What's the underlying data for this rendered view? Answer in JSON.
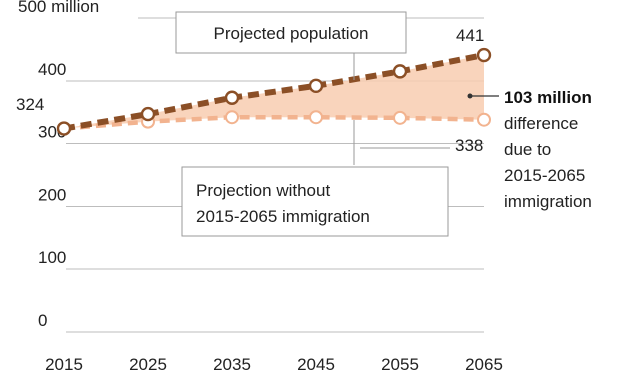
{
  "chart_data": {
    "type": "line",
    "x": [
      2015,
      2025,
      2035,
      2045,
      2055,
      2065
    ],
    "x_tick_labels": [
      "2015",
      "2025",
      "2035",
      "2045",
      "2055",
      "2065"
    ],
    "y_tick_labels": [
      "0",
      "100",
      "200",
      "300",
      "400",
      "500 million"
    ],
    "ylim": [
      0,
      500
    ],
    "grid": true,
    "series": [
      {
        "key": "projected",
        "values": [
          324,
          347,
          373,
          392,
          415,
          441
        ],
        "color": "#8b4f26",
        "style": "dashed-bold",
        "marker": "open-circle"
      },
      {
        "key": "without_immigration",
        "values": [
          324,
          335,
          342,
          342,
          341,
          338
        ],
        "color": "#f2b38f",
        "style": "dashed",
        "marker": "open-circle"
      }
    ],
    "fill_between": {
      "color": "#f8cdb0"
    },
    "annotations": {
      "start_value": "324",
      "end_projected": "441",
      "end_without": "338",
      "callout_projected": "Projected population",
      "callout_without_line1": "Projection without",
      "callout_without_line2": "2015-2065 immigration",
      "difference_value": "103 million",
      "difference_text": [
        "difference",
        "due to",
        "2015-2065",
        "immigration"
      ]
    }
  }
}
